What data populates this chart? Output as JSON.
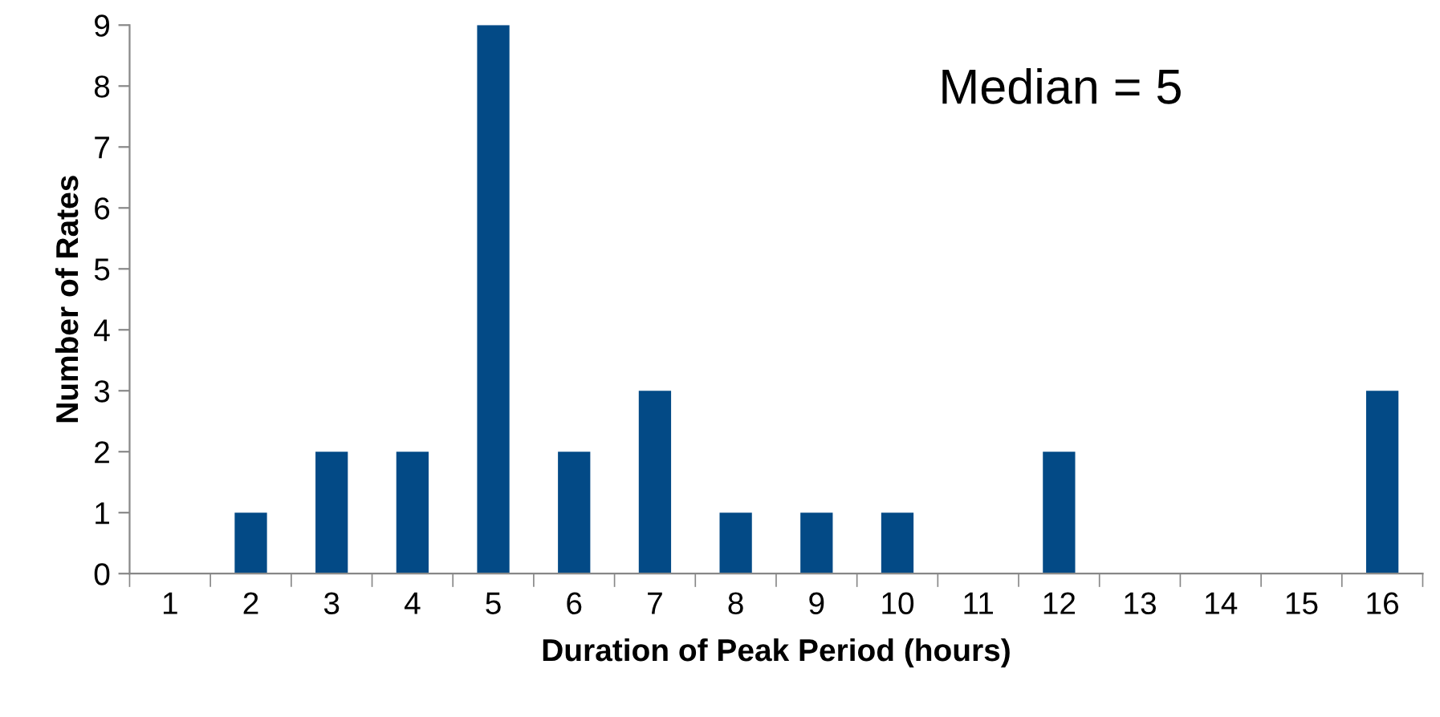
{
  "chart_data": {
    "type": "bar",
    "xlabel": "Duration of Peak Period (hours)",
    "ylabel": "Number of Rates",
    "categories": [
      "1",
      "2",
      "3",
      "4",
      "5",
      "6",
      "7",
      "8",
      "9",
      "10",
      "11",
      "12",
      "13",
      "14",
      "15",
      "16"
    ],
    "values": [
      0,
      1,
      2,
      2,
      9,
      2,
      3,
      1,
      1,
      1,
      0,
      2,
      0,
      0,
      0,
      3
    ],
    "color": "#034a86",
    "ylim": [
      0,
      9
    ],
    "yticks": [
      0,
      1,
      2,
      3,
      4,
      5,
      6,
      7,
      8,
      9
    ],
    "grid": false,
    "legend": false,
    "annotations": [
      "Median = 5"
    ]
  }
}
